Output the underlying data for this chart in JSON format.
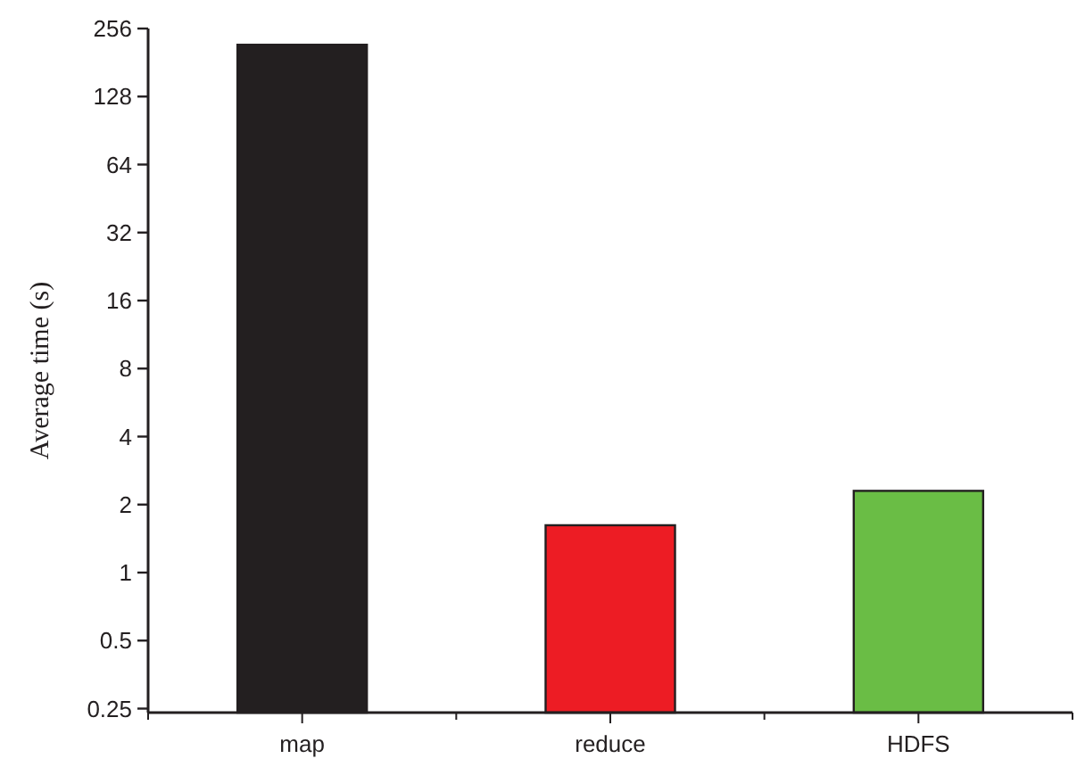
{
  "chart_data": {
    "type": "bar",
    "ylabel": "Average time (s)",
    "categories": [
      "map",
      "reduce",
      "HDFS"
    ],
    "values": [
      217,
      1.62,
      2.3
    ],
    "colors": [
      "#231f20",
      "#ed1c24",
      "#6abd45"
    ],
    "log": true,
    "ylim": [
      0.24,
      256
    ],
    "yticks": [
      0.25,
      0.5,
      1,
      2,
      4,
      8,
      16,
      32,
      64,
      128,
      256
    ],
    "grid": false
  }
}
